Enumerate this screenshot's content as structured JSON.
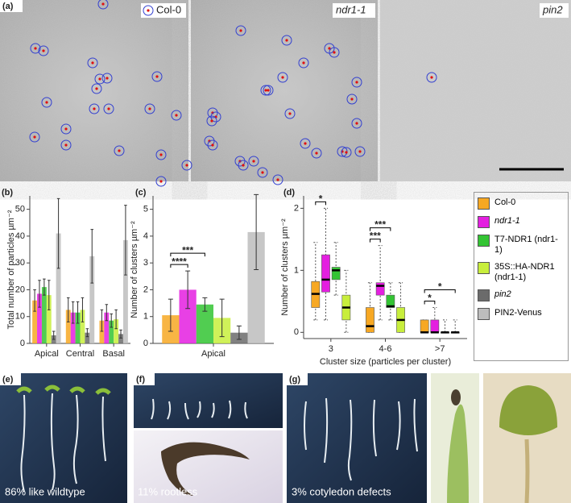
{
  "panel_labels": {
    "a": "(a)",
    "b": "(b)",
    "c": "(c)",
    "d": "(d)",
    "e": "(e)",
    "f": "(f)",
    "g": "(g)"
  },
  "micrographs": [
    "Col-0",
    "ndr1-1",
    "pin2"
  ],
  "photo_captions": [
    "86% like wildtype",
    "11% rootless",
    "3% cotyledon defects"
  ],
  "chart_data": [
    {
      "type": "bar",
      "y_label": "Total  number of particles µm⁻²",
      "categories": [
        "Apical",
        "Central",
        "Basal"
      ],
      "ylim": [
        0,
        55
      ],
      "yticks": [
        0,
        10,
        20,
        30,
        40,
        50
      ],
      "series": [
        {
          "name": "Col-0",
          "color": "#f7a823",
          "values": [
            16,
            12.5,
            8.5
          ],
          "errors": [
            4,
            4.5,
            4
          ]
        },
        {
          "name": "ndr1-1",
          "italic": true,
          "color": "#e41fe0",
          "values": [
            18.5,
            11.5,
            11.5
          ],
          "errors": [
            5,
            4,
            3
          ]
        },
        {
          "name": "T7-NDR1 (ndr1-1)",
          "color": "#33c433",
          "values": [
            21,
            11.5,
            8.5
          ],
          "errors": [
            3,
            4,
            2.5
          ]
        },
        {
          "name": "35S::HA-NDR1 (ndr1-1)",
          "color": "#c8ee3c",
          "values": [
            18,
            12.5,
            9
          ],
          "errors": [
            5.5,
            4.5,
            3.5
          ]
        },
        {
          "name": "pin2",
          "italic": true,
          "color": "#6b6b6b",
          "values": [
            3,
            4,
            3.5
          ],
          "errors": [
            1.5,
            1.5,
            1.5
          ]
        },
        {
          "name": "PIN2-Venus",
          "color": "#bdbdbd",
          "values": [
            41,
            32.5,
            38.5
          ],
          "errors": [
            13,
            10,
            13
          ]
        }
      ]
    },
    {
      "type": "bar",
      "y_label": "Number of clusters µm⁻²",
      "categories": [
        "Apical"
      ],
      "ylim": [
        0,
        5.5
      ],
      "yticks": [
        0,
        1,
        2,
        3,
        4,
        5
      ],
      "series": [
        {
          "name": "Col-0",
          "color": "#f7a823",
          "values": [
            1.05
          ],
          "errors": [
            0.6
          ]
        },
        {
          "name": "ndr1-1",
          "color": "#e41fe0",
          "values": [
            2.0
          ],
          "errors": [
            0.7
          ]
        },
        {
          "name": "T7-NDR1 (ndr1-1)",
          "color": "#33c433",
          "values": [
            1.45
          ],
          "errors": [
            0.25
          ]
        },
        {
          "name": "35S::HA-NDR1 (ndr1-1)",
          "color": "#c8ee3c",
          "values": [
            0.95
          ],
          "errors": [
            0.7
          ]
        },
        {
          "name": "pin2",
          "color": "#6b6b6b",
          "values": [
            0.4
          ],
          "errors": [
            0.25
          ]
        },
        {
          "name": "PIN2-Venus",
          "color": "#bdbdbd",
          "values": [
            4.15
          ],
          "errors": [
            1.4
          ]
        }
      ],
      "annotations": [
        {
          "text": "****",
          "category": 0,
          "series": [
            0,
            1
          ]
        },
        {
          "text": "***",
          "category": 0,
          "series": [
            0,
            2
          ]
        }
      ]
    },
    {
      "type": "box",
      "y_label": "Number of clusters µm⁻²",
      "x_label": "Cluster size (particles per cluster)",
      "categories": [
        "3",
        "4-6",
        ">7"
      ],
      "ylim": [
        -0.1,
        2.2
      ],
      "yticks": [
        0,
        1,
        2
      ],
      "series": [
        {
          "name": "Col-0",
          "color": "#f7a823",
          "values": [
            {
              "low": 0.2,
              "q1": 0.4,
              "median": 0.62,
              "q3": 0.82,
              "high": 1.45
            },
            {
              "low": 0,
              "q1": 0,
              "median": 0.1,
              "q3": 0.4,
              "high": 0.8
            },
            {
              "low": 0,
              "q1": 0,
              "median": 0,
              "q3": 0.2,
              "high": 0.2
            }
          ]
        },
        {
          "name": "ndr1-1",
          "color": "#e41fe0",
          "values": [
            {
              "low": 0.2,
              "q1": 0.65,
              "median": 0.85,
              "q3": 1.25,
              "high": 2.0
            },
            {
              "low": 0.2,
              "q1": 0.6,
              "median": 0.75,
              "q3": 0.8,
              "high": 1.4
            },
            {
              "low": 0,
              "q1": 0,
              "median": 0,
              "q3": 0.2,
              "high": 0.4
            }
          ]
        },
        {
          "name": "T7-NDR1 (ndr1-1)",
          "color": "#33c433",
          "values": [
            {
              "low": 0.6,
              "q1": 0.85,
              "median": 1.0,
              "q3": 1.05,
              "high": 1.45
            },
            {
              "low": 0.2,
              "q1": 0.4,
              "median": 0.42,
              "q3": 0.6,
              "high": 0.8
            },
            {
              "low": 0,
              "q1": 0,
              "median": 0,
              "q3": 0,
              "high": 0.2
            }
          ]
        },
        {
          "name": "35S::HA-NDR1 (ndr1-1)",
          "color": "#c8ee3c",
          "values": [
            {
              "low": 0,
              "q1": 0.2,
              "median": 0.4,
              "q3": 0.6,
              "high": 1.0
            },
            {
              "low": 0,
              "q1": 0,
              "median": 0.2,
              "q3": 0.4,
              "high": 0.8
            },
            {
              "low": 0,
              "q1": 0,
              "median": 0,
              "q3": 0,
              "high": 0.2
            }
          ]
        }
      ],
      "annotations": [
        {
          "text": "*",
          "category": 0,
          "series": [
            0,
            1
          ]
        },
        {
          "text": "***",
          "category": 1,
          "series": [
            0,
            1
          ]
        },
        {
          "text": "***",
          "category": 1,
          "series": [
            0,
            2
          ]
        },
        {
          "text": "*",
          "category": 2,
          "series": [
            0,
            1
          ]
        },
        {
          "text": "*",
          "category": 2,
          "series": [
            0,
            3
          ]
        }
      ]
    }
  ]
}
